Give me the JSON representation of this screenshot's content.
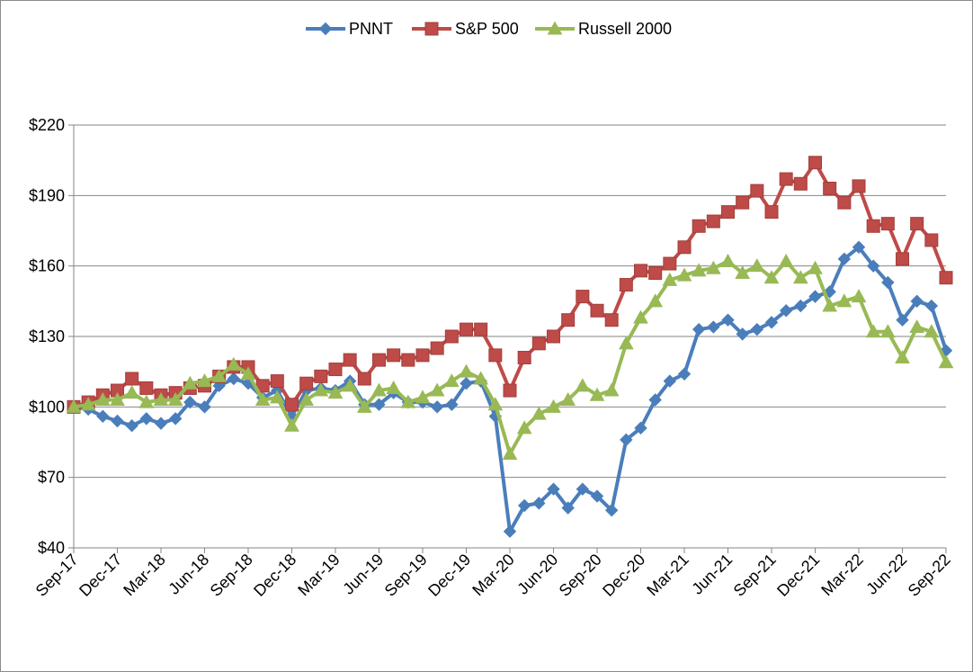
{
  "chart_data": {
    "type": "line",
    "title": "",
    "xlabel": "",
    "ylabel": "",
    "ylim": [
      40,
      220
    ],
    "yticks": [
      40,
      70,
      100,
      130,
      160,
      190,
      220
    ],
    "ytick_labels": [
      "$40",
      "$70",
      "$100",
      "$130",
      "$160",
      "$190",
      "$220"
    ],
    "grid": "horizontal",
    "legend_position": "top-center",
    "xtick_labels": [
      "Sep-17",
      "Dec-17",
      "Mar-18",
      "Jun-18",
      "Sep-18",
      "Dec-18",
      "Mar-19",
      "Jun-19",
      "Sep-19",
      "Dec-19",
      "Mar-20",
      "Jun-20",
      "Sep-20",
      "Dec-20",
      "Mar-21",
      "Jun-21",
      "Sep-21",
      "Dec-21",
      "Mar-22",
      "Jun-22",
      "Sep-22"
    ],
    "x": [
      "Sep-17",
      "Oct-17",
      "Nov-17",
      "Dec-17",
      "Jan-18",
      "Feb-18",
      "Mar-18",
      "Apr-18",
      "May-18",
      "Jun-18",
      "Jul-18",
      "Aug-18",
      "Sep-18",
      "Oct-18",
      "Nov-18",
      "Dec-18",
      "Jan-19",
      "Feb-19",
      "Mar-19",
      "Apr-19",
      "May-19",
      "Jun-19",
      "Jul-19",
      "Aug-19",
      "Sep-19",
      "Oct-19",
      "Nov-19",
      "Dec-19",
      "Jan-20",
      "Feb-20",
      "Mar-20",
      "Apr-20",
      "May-20",
      "Jun-20",
      "Jul-20",
      "Aug-20",
      "Sep-20",
      "Oct-20",
      "Nov-20",
      "Dec-20",
      "Jan-21",
      "Feb-21",
      "Mar-21",
      "Apr-21",
      "May-21",
      "Jun-21",
      "Jul-21",
      "Aug-21",
      "Sep-21",
      "Oct-21",
      "Nov-21",
      "Dec-21",
      "Jan-22",
      "Feb-22",
      "Mar-22",
      "Apr-22",
      "May-22",
      "Jun-22",
      "Jul-22",
      "Aug-22",
      "Sep-22"
    ],
    "series": [
      {
        "name": "PNNT",
        "color": "#4a7ebb",
        "marker": "diamond",
        "values": [
          100,
          99,
          96,
          94,
          92,
          95,
          93,
          95,
          102,
          100,
          109,
          112,
          110,
          104,
          107,
          96,
          107,
          108,
          107,
          111,
          101,
          101,
          106,
          102,
          102,
          100,
          101,
          110,
          111,
          96,
          47,
          58,
          59,
          65,
          57,
          65,
          62,
          56,
          86,
          91,
          103,
          111,
          114,
          133,
          134,
          137,
          131,
          133,
          136,
          141,
          143,
          147,
          149,
          163,
          168,
          160,
          153,
          137,
          145,
          143,
          124
        ]
      },
      {
        "name": "S&P 500",
        "color": "#be4b48",
        "marker": "square",
        "values": [
          100,
          102,
          105,
          107,
          112,
          108,
          105,
          106,
          108,
          109,
          113,
          117,
          117,
          109,
          111,
          101,
          110,
          113,
          116,
          120,
          112,
          120,
          122,
          120,
          122,
          125,
          130,
          133,
          133,
          122,
          107,
          121,
          127,
          130,
          137,
          147,
          141,
          137,
          152,
          158,
          157,
          161,
          168,
          177,
          179,
          183,
          187,
          192,
          183,
          197,
          195,
          204,
          193,
          187,
          194,
          177,
          178,
          163,
          178,
          171,
          155
        ]
      },
      {
        "name": "Russell 2000",
        "color": "#98b954",
        "marker": "triangle",
        "values": [
          100,
          101,
          103,
          103,
          106,
          102,
          103,
          103,
          110,
          111,
          113,
          118,
          114,
          103,
          104,
          92,
          103,
          107,
          106,
          109,
          100,
          107,
          108,
          102,
          104,
          107,
          111,
          115,
          112,
          101,
          80,
          91,
          97,
          100,
          103,
          109,
          105,
          107,
          127,
          138,
          145,
          154,
          156,
          158,
          159,
          162,
          157,
          160,
          155,
          162,
          155,
          159,
          143,
          145,
          147,
          132,
          132,
          121,
          134,
          132,
          119
        ]
      }
    ]
  }
}
